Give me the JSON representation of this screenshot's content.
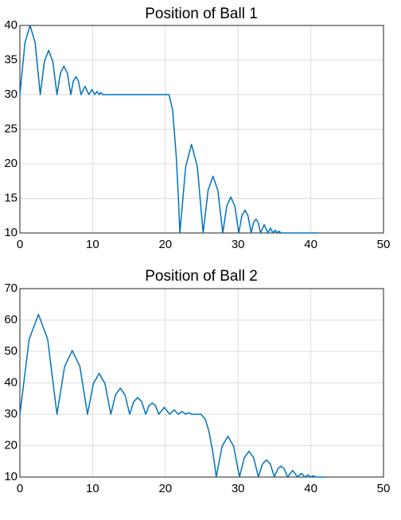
{
  "chart_data": [
    {
      "type": "line",
      "title": "Position of Ball 1",
      "color": "#0072bd",
      "grid": true,
      "xlim": [
        0,
        50
      ],
      "xticks": [
        0,
        10,
        20,
        30,
        40,
        50
      ],
      "ylim": [
        10,
        40
      ],
      "yticks": [
        10,
        15,
        20,
        25,
        30,
        35,
        40
      ],
      "x": [
        0,
        0.7,
        1.4,
        2.1,
        2.8,
        3.375,
        3.95,
        4.525,
        5.1,
        5.575,
        6.05,
        6.525,
        7.0,
        7.35,
        7.7,
        8.05,
        8.4,
        8.95,
        9.5,
        9.9,
        10.3,
        10.6,
        10.9,
        11.15,
        11.4,
        12.5,
        20.5,
        21,
        21.5,
        21.8,
        22,
        22.8,
        23.6,
        24.4,
        25.2,
        25.875,
        26.55,
        27.225,
        27.9,
        28.45,
        29.0,
        29.55,
        30.1,
        30.525,
        30.95,
        31.375,
        31.8,
        32.125,
        32.45,
        32.775,
        33.1,
        33.6,
        34.1,
        34.45,
        34.8,
        35.1,
        35.4,
        35.65,
        35.9,
        41
      ],
      "values": [
        30,
        37.5,
        40,
        37.5,
        30,
        34.8,
        36.4,
        34.8,
        30,
        33.1,
        34.1,
        33.1,
        30,
        31.95,
        32.6,
        31.95,
        30,
        31.2,
        30,
        30.75,
        30,
        30.45,
        30,
        30.3,
        30,
        30,
        30,
        27.8,
        21.1,
        15,
        10,
        19.6,
        22.8,
        19.6,
        10,
        16.15,
        18.2,
        16.15,
        10,
        13.9,
        15.2,
        13.9,
        10,
        12.475,
        13.3,
        12.475,
        10,
        11.5,
        12,
        11.5,
        10,
        11.2,
        10,
        10.7,
        10,
        10.4,
        10,
        10.25,
        10,
        10
      ]
    },
    {
      "type": "line",
      "title": "Position of Ball 2",
      "color": "#0072bd",
      "grid": true,
      "xlim": [
        0,
        50
      ],
      "xticks": [
        0,
        10,
        20,
        30,
        40,
        50
      ],
      "ylim": [
        10,
        70
      ],
      "yticks": [
        10,
        20,
        30,
        40,
        50,
        60,
        70
      ],
      "x": [
        0,
        1.275,
        2.55,
        3.825,
        5.1,
        6.15,
        7.2,
        8.25,
        9.3,
        10.1,
        10.9,
        11.7,
        12.5,
        13.15,
        13.8,
        14.45,
        15.1,
        15.65,
        16.2,
        16.75,
        17.3,
        17.75,
        18.2,
        18.65,
        19.1,
        19.85,
        20.6,
        21.2,
        21.8,
        22.3,
        22.8,
        23.2,
        23.6,
        24.9,
        25.5,
        26,
        26.5,
        26.8,
        27,
        27.8,
        28.6,
        29.4,
        30.2,
        30.85,
        31.5,
        32.15,
        32.8,
        33.35,
        33.9,
        34.45,
        35,
        35.45,
        35.9,
        36.35,
        36.8,
        37.5,
        38.2,
        38.7,
        39.2,
        39.6,
        40,
        40.35,
        40.7,
        42
      ],
      "values": [
        30,
        53.85,
        61.8,
        53.85,
        30,
        45.2,
        50.3,
        45.2,
        30,
        39.75,
        43,
        39.75,
        30,
        36.2,
        38.3,
        36.2,
        30,
        34,
        35.3,
        34,
        30,
        32.7,
        33.6,
        32.7,
        30,
        32.2,
        30,
        31.4,
        30,
        30.9,
        30,
        30.5,
        30,
        30,
        28.4,
        24.5,
        18.4,
        13.6,
        10,
        19.75,
        23,
        19.75,
        10,
        16.15,
        18.2,
        16.15,
        10,
        14.1,
        15.5,
        14.1,
        10,
        12.6,
        13.5,
        12.6,
        10,
        12.1,
        10,
        11.2,
        10,
        10.7,
        10,
        10.4,
        10,
        10
      ]
    }
  ]
}
